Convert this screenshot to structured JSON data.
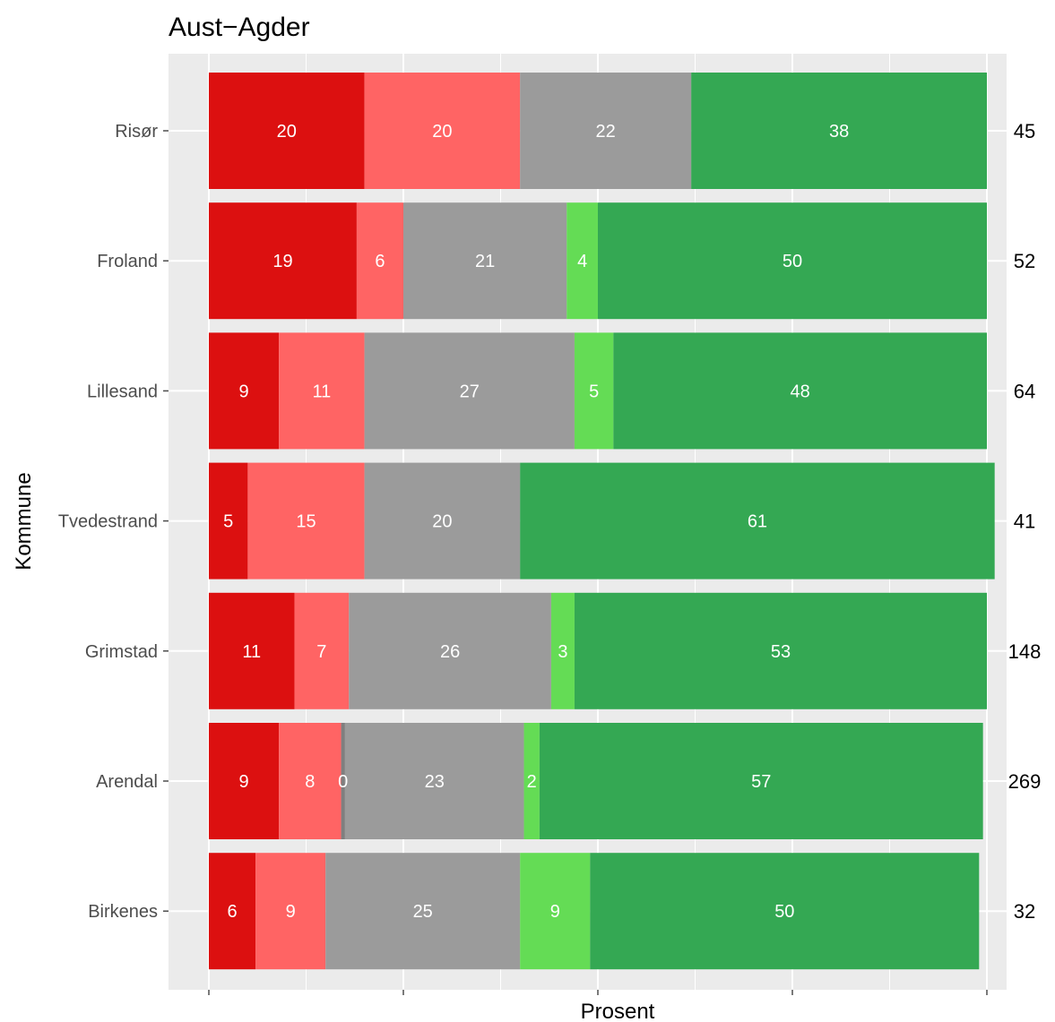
{
  "chart_data": {
    "type": "bar",
    "orientation": "horizontal",
    "stacked": true,
    "title": "Aust−Agder",
    "xlabel": "Prosent",
    "ylabel": "Kommune",
    "xlim": [
      0,
      100
    ],
    "grid": true,
    "legend": "none",
    "panel_background": "#ebebeb",
    "categories": [
      "Risør",
      "Froland",
      "Lillesand",
      "Tvedestrand",
      "Grimstad",
      "Arendal",
      "Birkenes"
    ],
    "series": [
      {
        "color": "#dc1010",
        "values": [
          20,
          19,
          9,
          5,
          11,
          9,
          6
        ],
        "labels": [
          "20",
          "19",
          "9",
          "5",
          "11",
          "9",
          "6"
        ]
      },
      {
        "color": "#ff6464",
        "values": [
          20,
          6,
          11,
          15,
          7,
          8,
          9
        ],
        "labels": [
          "20",
          "6",
          "11",
          "15",
          "7",
          "8",
          "9"
        ]
      },
      {
        "color": "#7f7f7f",
        "values": [
          null,
          null,
          null,
          null,
          null,
          0.5,
          null
        ],
        "labels": [
          null,
          null,
          null,
          null,
          null,
          "0",
          null
        ]
      },
      {
        "color": "#9b9b9b",
        "values": [
          22,
          21,
          27,
          20,
          26,
          23,
          25
        ],
        "labels": [
          "22",
          "21",
          "27",
          "20",
          "26",
          "23",
          "25"
        ]
      },
      {
        "color": "#64dc55",
        "values": [
          null,
          4,
          5,
          null,
          3,
          2,
          9
        ],
        "labels": [
          null,
          "4",
          "5",
          null,
          "3",
          "2",
          "9"
        ]
      },
      {
        "color": "#34a853",
        "values": [
          38,
          50,
          48,
          61,
          53,
          57,
          50
        ],
        "labels": [
          "38",
          "50",
          "48",
          "61",
          "53",
          "57",
          "50"
        ]
      }
    ],
    "n_values": [
      "45",
      "52",
      "64",
      "41",
      "148",
      "269",
      "32"
    ]
  }
}
